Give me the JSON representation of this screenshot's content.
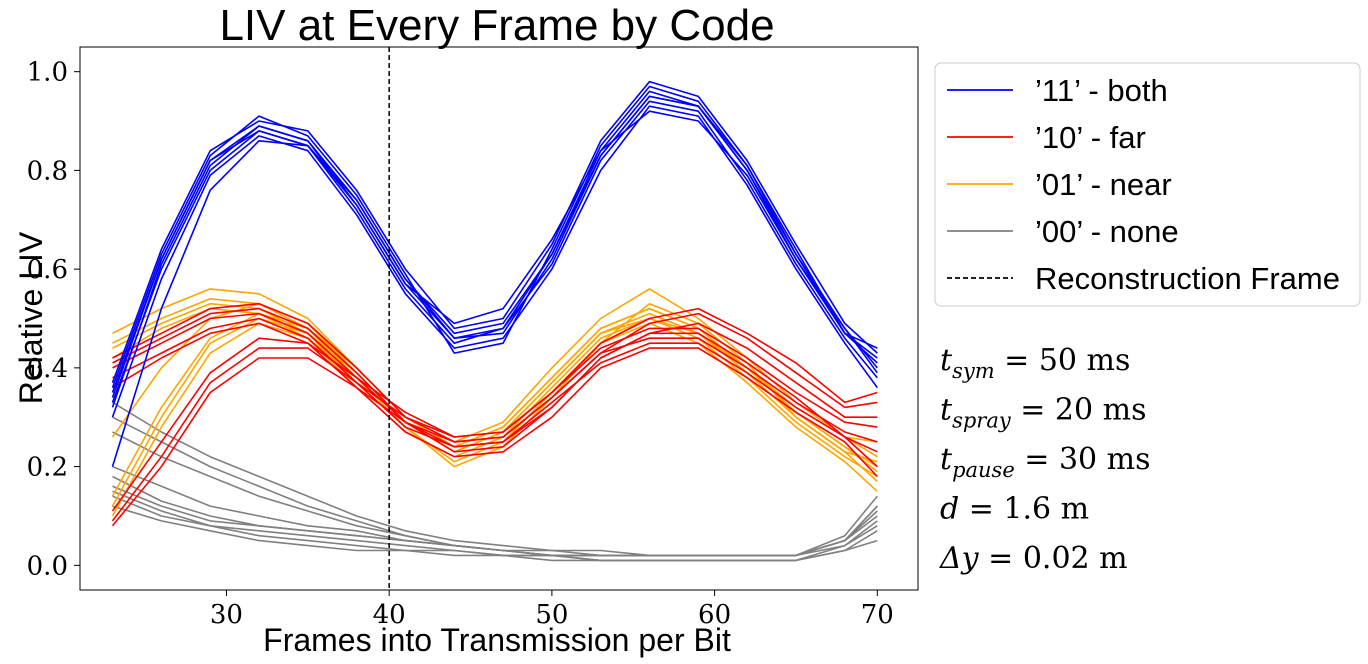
{
  "chart_data": {
    "type": "line",
    "title": "LIV at Every Frame by Code",
    "xlabel": "Frames into Transmission per Bit",
    "ylabel": "Relative LIV",
    "xlim": [
      21,
      72.5
    ],
    "ylim": [
      -0.05,
      1.05
    ],
    "xticks": [
      30,
      40,
      50,
      60,
      70
    ],
    "yticks": [
      0.0,
      0.2,
      0.4,
      0.6,
      0.8,
      1.0
    ],
    "grid": false,
    "legend_position": "outside-right-top",
    "colors": {
      "11": "#0000ff",
      "10": "#ff0000",
      "01": "#ffa500",
      "00": "#808080",
      "reconstruction": "#000000"
    },
    "legend": [
      {
        "key": "11",
        "label": "’11’ - both",
        "style": "solid"
      },
      {
        "key": "10",
        "label": "’10’ - far",
        "style": "solid"
      },
      {
        "key": "01",
        "label": "’01’ - near",
        "style": "solid"
      },
      {
        "key": "00",
        "label": "’00’ - none",
        "style": "solid"
      },
      {
        "key": "reconstruction",
        "label": "Reconstruction Frame",
        "style": "dashed"
      }
    ],
    "reconstruction_frame": 40,
    "x": [
      23,
      26,
      29,
      32,
      35,
      38,
      41,
      44,
      47,
      50,
      53,
      56,
      59,
      62,
      65,
      68,
      70
    ],
    "series": [
      {
        "code": "11",
        "values": [
          0.35,
          0.62,
          0.82,
          0.89,
          0.86,
          0.74,
          0.58,
          0.47,
          0.49,
          0.63,
          0.84,
          0.96,
          0.93,
          0.8,
          0.63,
          0.48,
          0.4
        ]
      },
      {
        "code": "11",
        "values": [
          0.33,
          0.6,
          0.8,
          0.88,
          0.85,
          0.72,
          0.56,
          0.45,
          0.48,
          0.61,
          0.82,
          0.94,
          0.92,
          0.78,
          0.61,
          0.46,
          0.38
        ]
      },
      {
        "code": "11",
        "values": [
          0.37,
          0.64,
          0.84,
          0.9,
          0.88,
          0.76,
          0.6,
          0.48,
          0.5,
          0.65,
          0.86,
          0.98,
          0.95,
          0.82,
          0.65,
          0.49,
          0.43
        ]
      },
      {
        "code": "11",
        "values": [
          0.3,
          0.58,
          0.79,
          0.87,
          0.84,
          0.71,
          0.55,
          0.44,
          0.46,
          0.6,
          0.8,
          0.93,
          0.91,
          0.77,
          0.6,
          0.45,
          0.36
        ]
      },
      {
        "code": "11",
        "values": [
          0.2,
          0.52,
          0.76,
          0.86,
          0.85,
          0.74,
          0.58,
          0.46,
          0.47,
          0.62,
          0.83,
          0.95,
          0.93,
          0.8,
          0.62,
          0.47,
          0.41
        ]
      },
      {
        "code": "11",
        "values": [
          0.36,
          0.63,
          0.83,
          0.91,
          0.87,
          0.75,
          0.59,
          0.43,
          0.45,
          0.64,
          0.85,
          0.97,
          0.94,
          0.81,
          0.64,
          0.47,
          0.44
        ]
      },
      {
        "code": "11",
        "values": [
          0.32,
          0.61,
          0.81,
          0.89,
          0.86,
          0.73,
          0.57,
          0.49,
          0.52,
          0.66,
          0.84,
          0.92,
          0.9,
          0.79,
          0.62,
          0.48,
          0.39
        ]
      },
      {
        "code": "11",
        "values": [
          0.34,
          0.62,
          0.82,
          0.88,
          0.85,
          0.73,
          0.57,
          0.46,
          0.48,
          0.63,
          0.83,
          0.95,
          0.93,
          0.81,
          0.63,
          0.47,
          0.42
        ]
      },
      {
        "code": "10",
        "values": [
          0.4,
          0.45,
          0.5,
          0.51,
          0.47,
          0.38,
          0.29,
          0.25,
          0.26,
          0.34,
          0.43,
          0.46,
          0.46,
          0.4,
          0.33,
          0.27,
          0.25
        ]
      },
      {
        "code": "10",
        "values": [
          0.42,
          0.47,
          0.52,
          0.53,
          0.49,
          0.4,
          0.3,
          0.26,
          0.27,
          0.35,
          0.44,
          0.48,
          0.48,
          0.42,
          0.35,
          0.29,
          0.28
        ]
      },
      {
        "code": "10",
        "values": [
          0.38,
          0.43,
          0.48,
          0.5,
          0.46,
          0.37,
          0.28,
          0.24,
          0.25,
          0.33,
          0.41,
          0.45,
          0.45,
          0.39,
          0.32,
          0.26,
          0.23
        ]
      },
      {
        "code": "10",
        "values": [
          0.08,
          0.2,
          0.35,
          0.42,
          0.42,
          0.36,
          0.29,
          0.24,
          0.25,
          0.32,
          0.42,
          0.47,
          0.49,
          0.44,
          0.37,
          0.3,
          0.3
        ]
      },
      {
        "code": "10",
        "values": [
          0.09,
          0.22,
          0.37,
          0.44,
          0.44,
          0.37,
          0.3,
          0.25,
          0.26,
          0.34,
          0.43,
          0.49,
          0.51,
          0.46,
          0.39,
          0.32,
          0.33
        ]
      },
      {
        "code": "10",
        "values": [
          0.11,
          0.25,
          0.39,
          0.46,
          0.45,
          0.38,
          0.31,
          0.26,
          0.27,
          0.35,
          0.45,
          0.5,
          0.52,
          0.47,
          0.41,
          0.33,
          0.35
        ]
      },
      {
        "code": "10",
        "values": [
          0.41,
          0.46,
          0.51,
          0.52,
          0.48,
          0.39,
          0.29,
          0.23,
          0.24,
          0.32,
          0.42,
          0.47,
          0.47,
          0.41,
          0.34,
          0.26,
          0.2
        ]
      },
      {
        "code": "10",
        "values": [
          0.36,
          0.42,
          0.47,
          0.49,
          0.45,
          0.36,
          0.27,
          0.22,
          0.23,
          0.3,
          0.4,
          0.44,
          0.44,
          0.38,
          0.31,
          0.25,
          0.18
        ]
      },
      {
        "code": "01",
        "values": [
          0.45,
          0.5,
          0.54,
          0.53,
          0.48,
          0.38,
          0.29,
          0.24,
          0.28,
          0.38,
          0.48,
          0.52,
          0.48,
          0.4,
          0.31,
          0.24,
          0.2
        ]
      },
      {
        "code": "01",
        "values": [
          0.47,
          0.52,
          0.56,
          0.55,
          0.5,
          0.4,
          0.3,
          0.25,
          0.29,
          0.4,
          0.5,
          0.56,
          0.5,
          0.42,
          0.33,
          0.26,
          0.22
        ]
      },
      {
        "code": "01",
        "values": [
          0.42,
          0.48,
          0.52,
          0.51,
          0.46,
          0.36,
          0.27,
          0.22,
          0.26,
          0.36,
          0.46,
          0.5,
          0.46,
          0.38,
          0.29,
          0.22,
          0.18
        ]
      },
      {
        "code": "01",
        "values": [
          0.12,
          0.3,
          0.45,
          0.5,
          0.47,
          0.39,
          0.29,
          0.23,
          0.27,
          0.37,
          0.47,
          0.51,
          0.47,
          0.39,
          0.3,
          0.23,
          0.17
        ]
      },
      {
        "code": "01",
        "values": [
          0.14,
          0.32,
          0.46,
          0.51,
          0.48,
          0.4,
          0.3,
          0.24,
          0.28,
          0.38,
          0.48,
          0.52,
          0.48,
          0.4,
          0.31,
          0.24,
          0.19
        ]
      },
      {
        "code": "01",
        "values": [
          0.1,
          0.28,
          0.43,
          0.49,
          0.46,
          0.38,
          0.28,
          0.21,
          0.25,
          0.35,
          0.45,
          0.49,
          0.45,
          0.37,
          0.28,
          0.21,
          0.15
        ]
      },
      {
        "code": "01",
        "values": [
          0.26,
          0.4,
          0.5,
          0.53,
          0.49,
          0.39,
          0.29,
          0.23,
          0.27,
          0.37,
          0.47,
          0.5,
          0.47,
          0.4,
          0.32,
          0.26,
          0.25
        ]
      },
      {
        "code": "01",
        "values": [
          0.44,
          0.49,
          0.53,
          0.52,
          0.47,
          0.37,
          0.28,
          0.2,
          0.24,
          0.34,
          0.45,
          0.53,
          0.49,
          0.41,
          0.3,
          0.23,
          0.21
        ]
      },
      {
        "code": "00",
        "values": [
          0.33,
          0.27,
          0.22,
          0.18,
          0.14,
          0.1,
          0.07,
          0.05,
          0.04,
          0.03,
          0.03,
          0.02,
          0.02,
          0.02,
          0.02,
          0.05,
          0.12
        ]
      },
      {
        "code": "00",
        "values": [
          0.3,
          0.25,
          0.2,
          0.16,
          0.12,
          0.09,
          0.06,
          0.04,
          0.03,
          0.03,
          0.02,
          0.02,
          0.02,
          0.02,
          0.02,
          0.05,
          0.1
        ]
      },
      {
        "code": "00",
        "values": [
          0.27,
          0.22,
          0.18,
          0.14,
          0.11,
          0.08,
          0.06,
          0.04,
          0.03,
          0.02,
          0.02,
          0.02,
          0.02,
          0.02,
          0.02,
          0.04,
          0.08
        ]
      },
      {
        "code": "00",
        "values": [
          0.18,
          0.13,
          0.1,
          0.08,
          0.07,
          0.06,
          0.05,
          0.04,
          0.03,
          0.02,
          0.02,
          0.02,
          0.02,
          0.02,
          0.02,
          0.06,
          0.14
        ]
      },
      {
        "code": "00",
        "values": [
          0.16,
          0.12,
          0.09,
          0.08,
          0.07,
          0.06,
          0.05,
          0.04,
          0.03,
          0.02,
          0.02,
          0.02,
          0.02,
          0.02,
          0.02,
          0.05,
          0.12
        ]
      },
      {
        "code": "00",
        "values": [
          0.15,
          0.11,
          0.08,
          0.07,
          0.06,
          0.05,
          0.04,
          0.03,
          0.02,
          0.02,
          0.01,
          0.01,
          0.01,
          0.01,
          0.01,
          0.04,
          0.09
        ]
      },
      {
        "code": "00",
        "values": [
          0.14,
          0.1,
          0.08,
          0.06,
          0.05,
          0.04,
          0.03,
          0.03,
          0.02,
          0.02,
          0.01,
          0.01,
          0.01,
          0.01,
          0.01,
          0.03,
          0.07
        ]
      },
      {
        "code": "00",
        "values": [
          0.12,
          0.09,
          0.07,
          0.05,
          0.04,
          0.03,
          0.03,
          0.02,
          0.02,
          0.01,
          0.01,
          0.01,
          0.01,
          0.01,
          0.01,
          0.03,
          0.05
        ]
      },
      {
        "code": "00",
        "values": [
          0.2,
          0.16,
          0.12,
          0.1,
          0.08,
          0.07,
          0.05,
          0.04,
          0.03,
          0.02,
          0.02,
          0.02,
          0.02,
          0.02,
          0.02,
          0.05,
          0.11
        ]
      }
    ],
    "annotations": [
      {
        "base": "t",
        "sub": "sym",
        "rest": " = 50 ms"
      },
      {
        "base": "t",
        "sub": "spray",
        "rest": " = 20 ms"
      },
      {
        "base": "t",
        "sub": "pause",
        "rest": " = 30 ms"
      },
      {
        "base": "d",
        "sub": "",
        "rest": " = 1.6 m"
      },
      {
        "base": "Δy",
        "sub": "",
        "rest": " = 0.02 m"
      }
    ]
  }
}
